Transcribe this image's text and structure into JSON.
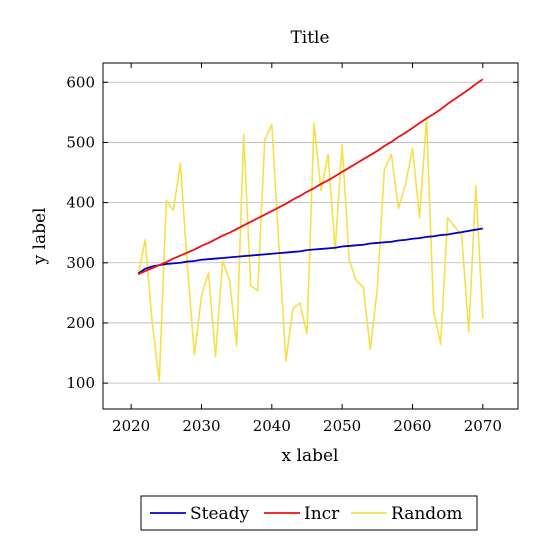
{
  "chart_data": {
    "type": "line",
    "title": "Title",
    "xlabel": "x label",
    "ylabel": "y label",
    "xlim": [
      2016,
      2075
    ],
    "ylim": [
      57,
      632
    ],
    "xticks": [
      2020,
      2030,
      2040,
      2050,
      2060,
      2070
    ],
    "yticks": [
      100,
      200,
      300,
      400,
      500,
      600
    ],
    "grid": "horizontal",
    "legend_position": "bottom",
    "x": [
      2021,
      2022,
      2023,
      2024,
      2025,
      2026,
      2027,
      2028,
      2029,
      2030,
      2031,
      2032,
      2033,
      2034,
      2035,
      2036,
      2037,
      2038,
      2039,
      2040,
      2041,
      2042,
      2043,
      2044,
      2045,
      2046,
      2047,
      2048,
      2049,
      2050,
      2051,
      2052,
      2053,
      2054,
      2055,
      2056,
      2057,
      2058,
      2059,
      2060,
      2061,
      2062,
      2063,
      2064,
      2065,
      2066,
      2067,
      2068,
      2069,
      2070
    ],
    "series": [
      {
        "name": "Steady",
        "color": "#0000cc",
        "values": [
          282,
          290,
          294,
          296,
          298,
          299,
          300,
          302,
          303,
          305,
          306,
          307,
          308,
          309,
          310,
          311,
          312,
          313,
          314,
          315,
          316,
          317,
          318,
          319,
          321,
          322,
          323,
          324,
          325,
          327,
          328,
          329,
          330,
          332,
          333,
          334,
          335,
          337,
          338,
          340,
          341,
          343,
          344,
          346,
          347,
          349,
          351,
          353,
          355,
          357
        ]
      },
      {
        "name": "Incr",
        "color": "#ee1111",
        "values": [
          281,
          286,
          291,
          296,
          301,
          307,
          312,
          317,
          322,
          328,
          333,
          339,
          345,
          350,
          356,
          362,
          368,
          374,
          380,
          386,
          392,
          398,
          405,
          411,
          418,
          424,
          431,
          437,
          444,
          451,
          458,
          465,
          472,
          479,
          486,
          494,
          501,
          509,
          516,
          524,
          532,
          540,
          547,
          555,
          564,
          572,
          580,
          588,
          597,
          605
        ]
      },
      {
        "name": "Random",
        "color": "#f5e04a",
        "values": [
          280,
          338,
          200,
          104,
          403,
          387,
          465,
          295,
          147,
          245,
          283,
          144,
          303,
          271,
          162,
          513,
          262,
          254,
          505,
          530,
          330,
          137,
          224,
          233,
          182,
          532,
          420,
          480,
          322,
          496,
          305,
          270,
          260,
          156,
          258,
          455,
          480,
          390,
          430,
          490,
          375,
          540,
          220,
          165,
          375,
          360,
          345,
          185,
          428,
          207
        ]
      }
    ]
  }
}
